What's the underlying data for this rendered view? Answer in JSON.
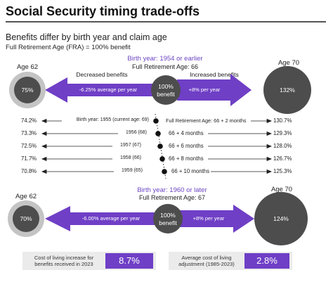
{
  "title": "Social Security timing trade-offs",
  "subtitle": "Benefits differ by birth year and claim age",
  "fra_note": "Full Retirement Age (FRA) = 100% benefit",
  "section1": {
    "birth_year": "Birth year: 1954 or earlier",
    "fra": "Full Retirement Age: 66",
    "age_left": "Age 62",
    "age_right": "Age 70",
    "left_value": "75%",
    "center_value_line1": "100%",
    "center_value_line2": "benefit",
    "right_value": "132%",
    "decreased_label": "Decreased benefits",
    "increased_label": "Increased benefits",
    "left_rate": "-6.25% average per year",
    "right_rate": "+8% per year"
  },
  "rows": [
    {
      "left": "74.2%",
      "birth": "Birth year: 1955 (current age: 69)",
      "fra": "Full Retirement Age: 66 + 2 months",
      "right": "130.7%"
    },
    {
      "left": "73.3%",
      "birth": "1956 (68)",
      "fra": "66 + 4 months",
      "right": "129.3%"
    },
    {
      "left": "72.5%",
      "birth": "1957 (67)",
      "fra": "66 + 6 months",
      "right": "128.0%"
    },
    {
      "left": "71.7%",
      "birth": "1958 (66)",
      "fra": "66 + 8 months",
      "right": "126.7%"
    },
    {
      "left": "70.8%",
      "birth": "1959 (65)",
      "fra": "66 + 10 months",
      "right": "125.3%"
    }
  ],
  "section2": {
    "birth_year": "Birth year: 1960 or later",
    "fra": "Full Retirement Age: 67",
    "age_left": "Age 62",
    "age_right": "Age 70",
    "left_value": "70%",
    "center_value_line1": "100%",
    "center_value_line2": "benefit",
    "right_value": "124%",
    "left_rate": "-6.00% average per year",
    "right_rate": "+8% per year"
  },
  "footer": {
    "col_line1": "Cost of living increase for",
    "col_line2": "benefits received in 2023",
    "col_value": "8.7%",
    "avg_line1": "Average cost of living",
    "avg_line2": "adjustment (1985-2023)",
    "avg_value": "2.8%"
  },
  "colors": {
    "purple": "#6f3fc6",
    "dark_circle": "#4d4d4d",
    "gray_ring": "#c4c4c4"
  }
}
